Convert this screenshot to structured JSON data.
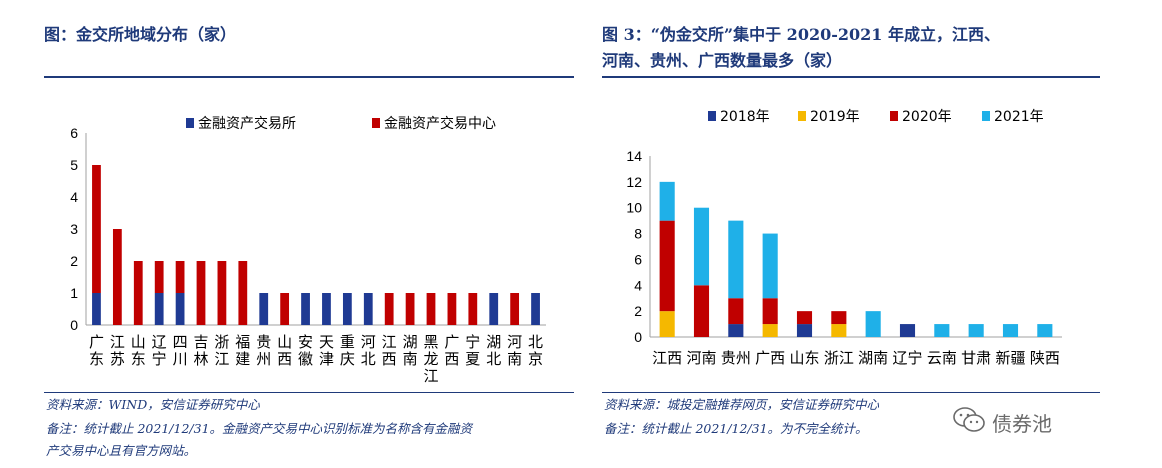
{
  "left": {
    "title": "图：金交所地域分布（家）",
    "source": "资料来源：WIND，安信证券研究中心",
    "note_line1": "备注：统计截止 2021/12/31。金融资产交易中心识别标准为名称含有金融资",
    "note_line2": "产交易中心且有官方网站。"
  },
  "right": {
    "title_line1": "图 3：“伪金交所”集中于 2020-2021 年成立，江西、",
    "title_line2": "河南、贵州、广西数量最多（家）",
    "source": "资料来源：城投定融推荐网页，安信证券研究中心",
    "note": "备注：统计截止 2021/12/31。为不完全统计。"
  },
  "watermark": {
    "icon": "wechat-icon",
    "text": "债券池"
  },
  "chart_data": [
    {
      "type": "bar",
      "stacked": true,
      "categories": [
        "广东",
        "江苏",
        "山东",
        "辽宁",
        "四川",
        "吉林",
        "浙江",
        "福建",
        "贵州",
        "山西",
        "安徽",
        "天津",
        "重庆",
        "河北",
        "江西",
        "湖南",
        "黑龙江",
        "广西",
        "宁夏",
        "湖北",
        "河南",
        "北京"
      ],
      "series": [
        {
          "name": "金融资产交易所",
          "color": "#1f3a93",
          "values": [
            1,
            0,
            0,
            1,
            1,
            0,
            0,
            0,
            1,
            0,
            1,
            1,
            1,
            1,
            0,
            0,
            0,
            0,
            0,
            1,
            0,
            1
          ]
        },
        {
          "name": "金融资产交易中心",
          "color": "#c00000",
          "values": [
            4,
            3,
            2,
            1,
            1,
            2,
            2,
            2,
            0,
            1,
            0,
            0,
            0,
            0,
            1,
            1,
            1,
            1,
            1,
            0,
            1,
            0
          ]
        }
      ],
      "ylim": [
        0,
        6
      ],
      "yticks": [
        0,
        1,
        2,
        3,
        4,
        5,
        6
      ],
      "legend": "top",
      "grid": false
    },
    {
      "type": "bar",
      "stacked": true,
      "categories": [
        "江西",
        "河南",
        "贵州",
        "广西",
        "山东",
        "浙江",
        "湖南",
        "辽宁",
        "云南",
        "甘肃",
        "新疆",
        "陕西"
      ],
      "series": [
        {
          "name": "2018年",
          "color": "#1f3a93",
          "values": [
            0,
            0,
            1,
            0,
            1,
            0,
            0,
            1,
            0,
            0,
            0,
            0
          ]
        },
        {
          "name": "2019年",
          "color": "#f5b800",
          "values": [
            2,
            0,
            0,
            1,
            0,
            1,
            0,
            0,
            0,
            0,
            0,
            0
          ]
        },
        {
          "name": "2020年",
          "color": "#c00000",
          "values": [
            7,
            4,
            2,
            2,
            1,
            1,
            0,
            0,
            0,
            0,
            0,
            0
          ]
        },
        {
          "name": "2021年",
          "color": "#1fb0e8",
          "values": [
            3,
            6,
            6,
            5,
            0,
            0,
            2,
            0,
            1,
            1,
            1,
            1
          ]
        }
      ],
      "ylim": [
        0,
        14
      ],
      "yticks": [
        0,
        2,
        4,
        6,
        8,
        10,
        12,
        14
      ],
      "legend": "top",
      "grid": false
    }
  ]
}
